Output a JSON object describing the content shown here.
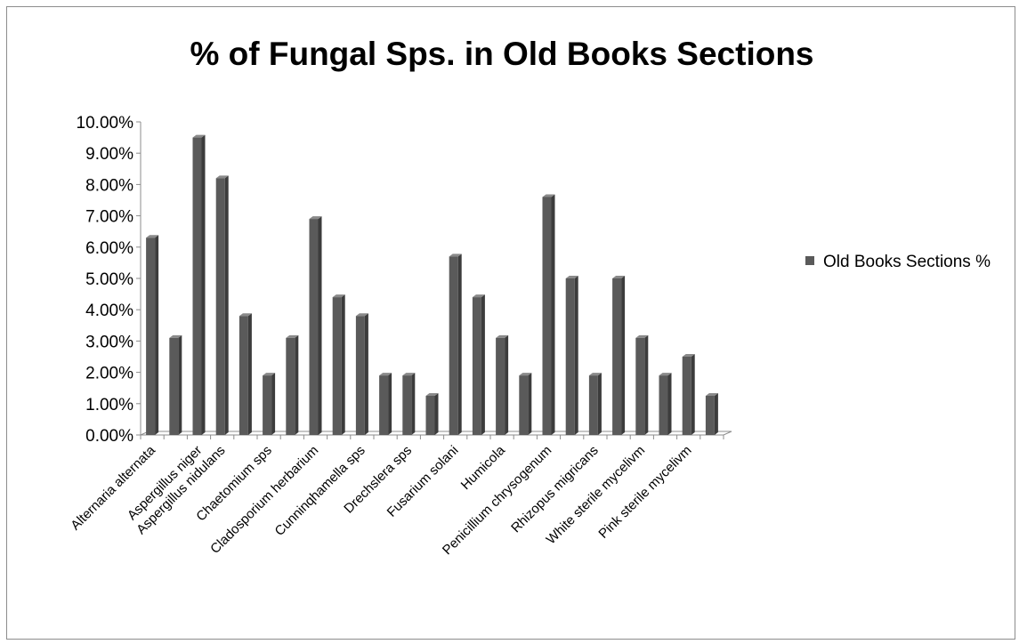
{
  "chart_data": {
    "type": "bar",
    "title": "% of Fungal Sps. in Old Books Sections",
    "xlabel": "",
    "ylabel": "",
    "ylim": [
      0,
      0.1
    ],
    "yticks": [
      0,
      0.01,
      0.02,
      0.03,
      0.04,
      0.05,
      0.06,
      0.07,
      0.08,
      0.09,
      0.1
    ],
    "ytick_labels": [
      "0.00%",
      "1.00%",
      "2.00%",
      "3.00%",
      "4.00%",
      "5.00%",
      "6.00%",
      "7.00%",
      "8.00%",
      "9.00%",
      "10.00%"
    ],
    "grid": false,
    "legend_position": "right",
    "categories": [
      "Alternaria alternata",
      "",
      "Aspergillus niger",
      "Aspergillus nidulans",
      "",
      "Chaetomium sps",
      "",
      "Cladosporium herbarium",
      "",
      "Cunninqhamella sps",
      "",
      "Drechslera sps",
      "",
      "Fusarium solani",
      "",
      "Humicola",
      "",
      "Penicillium chrysogenum",
      "",
      "Rhizopus migricans",
      "",
      "White sterile mycelivm",
      "",
      "Pink sterile mycelivm",
      ""
    ],
    "series": [
      {
        "name": "Old Books Sections %",
        "color": "#5a5a5a",
        "values": [
          0.063,
          0.031,
          0.095,
          0.082,
          0.038,
          0.019,
          0.031,
          0.069,
          0.044,
          0.038,
          0.019,
          0.019,
          0.0125,
          0.057,
          0.044,
          0.031,
          0.019,
          0.076,
          0.05,
          0.019,
          0.05,
          0.031,
          0.019,
          0.025,
          0.0125
        ]
      }
    ]
  }
}
